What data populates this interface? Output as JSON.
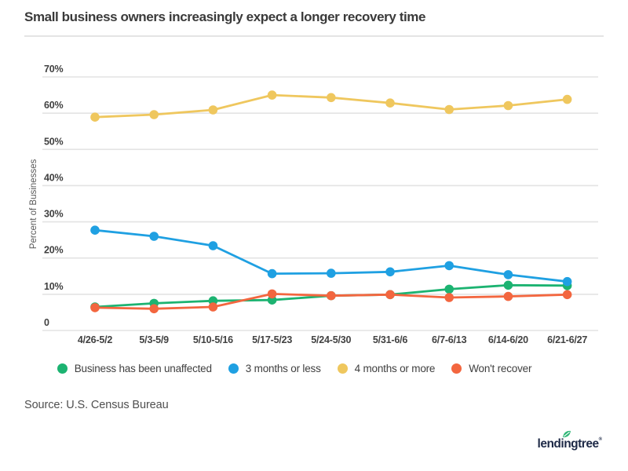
{
  "title": "Small business owners increasingly expect a longer recovery time",
  "source": "Source: U.S. Census Bureau",
  "brand": {
    "name": "lendingtree",
    "wordmark_parts": [
      "lendi",
      "n",
      "gtree"
    ],
    "registered": "®",
    "leaf_icon": "leaf-icon"
  },
  "colors": {
    "background": "#ffffff",
    "gridline": "#e3e3e3",
    "title_text": "#3a3a3a",
    "axis_text": "#414141",
    "muted_text": "#585858",
    "green": "#1cb371",
    "blue": "#1fa0e2",
    "yellow": "#efc75e",
    "orange": "#f3663f",
    "logo_navy": "#1e2a47",
    "leaf_green": "#2fb676"
  },
  "chart_data": {
    "type": "line",
    "title": "Small business owners increasingly expect a longer recovery time",
    "xlabel": "",
    "ylabel": "Percent of Businesses",
    "ylim": [
      0,
      70
    ],
    "grid": true,
    "legend_position": "bottom",
    "yticks": [
      {
        "value": 70,
        "label": "70%"
      },
      {
        "value": 60,
        "label": "60%"
      },
      {
        "value": 50,
        "label": "50%"
      },
      {
        "value": 40,
        "label": "40%"
      },
      {
        "value": 30,
        "label": "30%"
      },
      {
        "value": 20,
        "label": "20%"
      },
      {
        "value": 10,
        "label": "10%"
      },
      {
        "value": 0,
        "label": "0"
      }
    ],
    "categories": [
      "4/26-5/2",
      "5/3-5/9",
      "5/10-5/16",
      "5/17-5/23",
      "5/24-5/30",
      "5/31-6/6",
      "6/7-6/13",
      "6/14-6/20",
      "6/21-6/27"
    ],
    "series": [
      {
        "name": "Business has been unaffected",
        "color": "#1cb371",
        "values": [
          6.5,
          7.5,
          8.2,
          8.4,
          9.6,
          9.9,
          11.4,
          12.5,
          12.4
        ]
      },
      {
        "name": "3 months or less",
        "color": "#1fa0e2",
        "values": [
          27.7,
          26.0,
          23.4,
          15.7,
          15.8,
          16.2,
          17.9,
          15.4,
          13.5
        ]
      },
      {
        "name": "4 months or more",
        "color": "#efc75e",
        "values": [
          58.9,
          59.6,
          60.9,
          65.0,
          64.3,
          62.8,
          61.0,
          62.1,
          63.8
        ]
      },
      {
        "name": "Won't recover",
        "color": "#f3663f",
        "values": [
          6.3,
          6.0,
          6.5,
          10.1,
          9.6,
          9.9,
          9.1,
          9.4,
          9.9
        ]
      }
    ]
  }
}
